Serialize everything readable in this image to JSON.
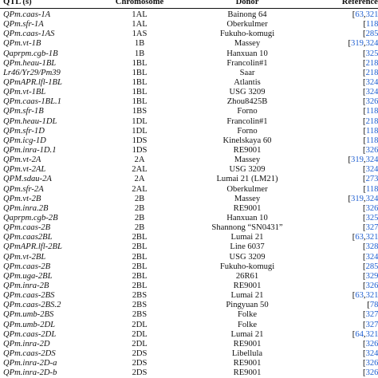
{
  "headers": {
    "qtl": "QTL (s)",
    "chromosome": "Chromosome",
    "donor": "Donor",
    "reference": "References"
  },
  "link_color": "#1f5fd1",
  "rows": [
    {
      "qtl": "QPm.caas-1A",
      "chrom": "1AL",
      "donor": "Bainong 64",
      "refs": [
        "63",
        "321"
      ]
    },
    {
      "qtl": "QPm.sfr-1A",
      "chrom": "1AL",
      "donor": "Oberkulmer",
      "refs": [
        "118"
      ]
    },
    {
      "qtl": "QPm.caas-1AS",
      "chrom": "1AS",
      "donor": "Fukuho-komugi",
      "refs": [
        "285"
      ]
    },
    {
      "qtl": "QPm.vt-1B",
      "chrom": "1B",
      "donor": "Massey",
      "refs": [
        "319",
        "324"
      ]
    },
    {
      "qtl": "Qaprpm.cgb-1B",
      "chrom": "1B",
      "donor": "Hanxuan 10",
      "refs": [
        "325"
      ]
    },
    {
      "qtl": "QPm.heau-1BL",
      "chrom": "1BL",
      "donor": "Francolin#1",
      "refs": [
        "218"
      ]
    },
    {
      "qtl": "Lr46/Yr29/Pm39",
      "chrom": "1BL",
      "donor": "Saar",
      "refs": [
        "218"
      ]
    },
    {
      "qtl": "QPmAPR.lfl-1BL",
      "chrom": "1BL",
      "donor": "Atlantis",
      "refs": [
        "324"
      ]
    },
    {
      "qtl": "QPm.vt-1BL",
      "chrom": "1BL",
      "donor": "USG 3209",
      "refs": [
        "324"
      ]
    },
    {
      "qtl": "QPm.caas-1BL.1",
      "chrom": "1BL",
      "donor": "Zhou8425B",
      "refs": [
        "326"
      ]
    },
    {
      "qtl": "QPm.sfr-1B",
      "chrom": "1BS",
      "donor": "Forno",
      "refs": [
        "118"
      ]
    },
    {
      "qtl": "QPm.heau-1DL",
      "chrom": "1DL",
      "donor": "Francolin#1",
      "refs": [
        "218"
      ]
    },
    {
      "qtl": "QPm.sfr-1D",
      "chrom": "1DL",
      "donor": "Forno",
      "refs": [
        "118"
      ]
    },
    {
      "qtl": "QPm.icg-1D",
      "chrom": "1DS",
      "donor": "Kinelskaya 60",
      "refs": [
        "118"
      ]
    },
    {
      "qtl": "QPm.inra-1D.1",
      "chrom": "1DS",
      "donor": "RE9001",
      "refs": [
        "326"
      ]
    },
    {
      "qtl": "QPm.vt-2A",
      "chrom": "2A",
      "donor": "Massey",
      "refs": [
        "319",
        "324"
      ]
    },
    {
      "qtl": "QPm.vt-2AL",
      "chrom": "2AL",
      "donor": "USG 3209",
      "refs": [
        "324"
      ]
    },
    {
      "qtl": "QPM.sdau-2A",
      "chrom": "2A",
      "donor": "Lumai 21 (LM21)",
      "refs": [
        "273"
      ]
    },
    {
      "qtl": "QPm.sfr-2A",
      "chrom": "2AL",
      "donor": "Oberkulmer",
      "refs": [
        "118"
      ]
    },
    {
      "qtl": "QPm.vt-2B",
      "chrom": "2B",
      "donor": "Massey",
      "refs": [
        "319",
        "324"
      ]
    },
    {
      "qtl": "QPm.inra.2B",
      "chrom": "2B",
      "donor": "RE9001",
      "refs": [
        "326"
      ]
    },
    {
      "qtl": "Qaprpm.cgb-2B",
      "chrom": "2B",
      "donor": "Hanxuan 10",
      "refs": [
        "325"
      ]
    },
    {
      "qtl": "QPm.caas-2B",
      "chrom": "2B",
      "donor": "Shannong “SN0431”",
      "refs": [
        "327"
      ]
    },
    {
      "qtl": "QPm.caas2BL",
      "chrom": "2BL",
      "donor": "Lumai 21",
      "refs": [
        "63",
        "321"
      ]
    },
    {
      "qtl": "QPmAPR.lfl-2BL",
      "chrom": "2BL",
      "donor": "Line 6037",
      "refs": [
        "328"
      ]
    },
    {
      "qtl": "QPm.vt-2BL",
      "chrom": "2BL",
      "donor": "USG 3209",
      "refs": [
        "324"
      ]
    },
    {
      "qtl": "QPm.caas-2B",
      "chrom": "2BL",
      "donor": "Fukuho-komugi",
      "refs": [
        "285"
      ]
    },
    {
      "qtl": "QPm.uga-2BL",
      "chrom": "2BL",
      "donor": "26R61",
      "refs": [
        "329"
      ]
    },
    {
      "qtl": "QPm.inra-2B",
      "chrom": "2BL",
      "donor": "RE9001",
      "refs": [
        "326"
      ]
    },
    {
      "qtl": "QPm.caas-2BS",
      "chrom": "2BS",
      "donor": "Lumai 21",
      "refs": [
        "63",
        "321"
      ]
    },
    {
      "qtl": "QPm.caas-2BS.2",
      "chrom": "2BS",
      "donor": "Pingyuan 50",
      "refs": [
        "78"
      ]
    },
    {
      "qtl": "QPm.umb-2BS",
      "chrom": "2BS",
      "donor": "Folke",
      "refs": [
        "327"
      ]
    },
    {
      "qtl": "QPm.umb-2DL",
      "chrom": "2DL",
      "donor": "Folke",
      "refs": [
        "327"
      ]
    },
    {
      "qtl": "QPm.caas-2DL",
      "chrom": "2DL",
      "donor": "Lumai 21",
      "refs": [
        "64",
        "321"
      ]
    },
    {
      "qtl": "QPm.inra-2D",
      "chrom": "2DL",
      "donor": "RE9001",
      "refs": [
        "326"
      ]
    },
    {
      "qtl": "QPm.caas-2DS",
      "chrom": "2DS",
      "donor": "Libellula",
      "refs": [
        "324"
      ]
    },
    {
      "qtl": "QPm.inra-2D-a",
      "chrom": "2DS",
      "donor": "RE9001",
      "refs": [
        "326"
      ]
    },
    {
      "qtl": "QPm.inra-2D-b",
      "chrom": "2DS",
      "donor": "RE9001",
      "refs": [
        "326"
      ]
    }
  ]
}
